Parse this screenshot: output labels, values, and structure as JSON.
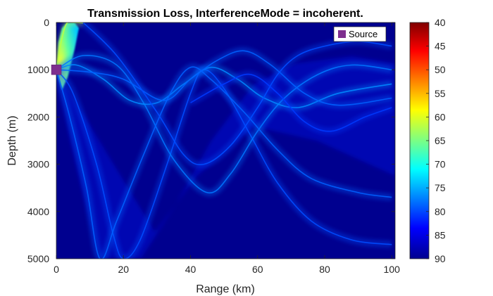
{
  "chart_data": {
    "type": "heatmap",
    "title": "Transmission Loss, InterferenceMode = incoherent.",
    "xlabel": "Range (km)",
    "ylabel": "Depth (m)",
    "xlim": [
      0,
      101
    ],
    "ylim": [
      0,
      5000
    ],
    "y_reversed": true,
    "x_ticks": [
      0,
      20,
      40,
      60,
      80,
      100
    ],
    "y_ticks": [
      0,
      1000,
      2000,
      3000,
      4000,
      5000
    ],
    "colorbar": {
      "colormap": "jet",
      "reversed": true,
      "range": [
        40,
        90
      ],
      "ticks": [
        40,
        45,
        50,
        55,
        60,
        65,
        70,
        75,
        80,
        85,
        90
      ]
    },
    "legend": {
      "location": "top-right",
      "entries": [
        {
          "label": "Source",
          "color": "#7e2f8e"
        }
      ]
    },
    "source": {
      "range": 0,
      "depth": 1000
    },
    "background_level": 90,
    "ray_bundles": [
      {
        "name": "near-field",
        "level": 62,
        "points": [
          [
            0,
            1000
          ],
          [
            1.5,
            400
          ],
          [
            3,
            30
          ],
          [
            5,
            0
          ],
          [
            8,
            10
          ]
        ]
      },
      {
        "name": "bundle-a",
        "level": 80,
        "points": [
          [
            0,
            1000
          ],
          [
            5,
            1500
          ],
          [
            12,
            3000
          ],
          [
            17,
            4500
          ],
          [
            20,
            5000
          ],
          [
            25,
            4600
          ],
          [
            33,
            3000
          ],
          [
            40,
            1500
          ],
          [
            44,
            1000
          ],
          [
            50,
            1400
          ],
          [
            58,
            2400
          ],
          [
            66,
            3400
          ],
          [
            76,
            4200
          ],
          [
            88,
            4600
          ],
          [
            100,
            4700
          ]
        ]
      },
      {
        "name": "bundle-b",
        "level": 78,
        "points": [
          [
            0,
            1000
          ],
          [
            8,
            700
          ],
          [
            18,
            900
          ],
          [
            26,
            1700
          ],
          [
            35,
            2900
          ],
          [
            45,
            3600
          ],
          [
            52,
            3200
          ],
          [
            60,
            2300
          ],
          [
            68,
            1600
          ],
          [
            78,
            1100
          ],
          [
            88,
            900
          ],
          [
            100,
            1000
          ]
        ]
      },
      {
        "name": "bundle-c",
        "level": 77,
        "points": [
          [
            0,
            1000
          ],
          [
            6,
            900
          ],
          [
            14,
            1200
          ],
          [
            22,
            1650
          ],
          [
            30,
            1700
          ],
          [
            38,
            1300
          ],
          [
            46,
            950
          ],
          [
            54,
            1200
          ],
          [
            62,
            1600
          ],
          [
            72,
            1800
          ],
          [
            84,
            1500
          ],
          [
            100,
            1300
          ]
        ]
      },
      {
        "name": "bundle-d",
        "level": 79,
        "points": [
          [
            0,
            1000
          ],
          [
            10,
            1050
          ],
          [
            20,
            1200
          ],
          [
            32,
            1650
          ],
          [
            40,
            1200
          ],
          [
            48,
            800
          ],
          [
            56,
            600
          ],
          [
            64,
            900
          ],
          [
            74,
            1500
          ],
          [
            84,
            1750
          ],
          [
            100,
            1600
          ]
        ]
      },
      {
        "name": "bundle-e",
        "level": 79,
        "points": [
          [
            0,
            1000
          ],
          [
            4,
            2000
          ],
          [
            9,
            3500
          ],
          [
            13,
            5000
          ],
          [
            18,
            4200
          ],
          [
            26,
            2800
          ],
          [
            34,
            1500
          ],
          [
            40,
            950
          ],
          [
            46,
            1200
          ],
          [
            56,
            1900
          ],
          [
            66,
            2700
          ],
          [
            76,
            3300
          ],
          [
            90,
            3600
          ],
          [
            100,
            3700
          ]
        ]
      },
      {
        "name": "bundle-f",
        "level": 80,
        "points": [
          [
            8,
            0
          ],
          [
            18,
            700
          ],
          [
            30,
            1900
          ],
          [
            38,
            2800
          ],
          [
            44,
            3000
          ],
          [
            52,
            2600
          ],
          [
            60,
            1800
          ],
          [
            66,
            1100
          ],
          [
            72,
            700
          ],
          [
            80,
            500
          ],
          [
            90,
            400
          ],
          [
            100,
            500
          ]
        ]
      },
      {
        "name": "bundle-g",
        "level": 81,
        "points": [
          [
            40,
            1700
          ],
          [
            50,
            1300
          ],
          [
            58,
            1100
          ],
          [
            66,
            1500
          ],
          [
            74,
            2100
          ],
          [
            82,
            2300
          ],
          [
            92,
            2000
          ],
          [
            100,
            1800
          ]
        ]
      }
    ]
  }
}
